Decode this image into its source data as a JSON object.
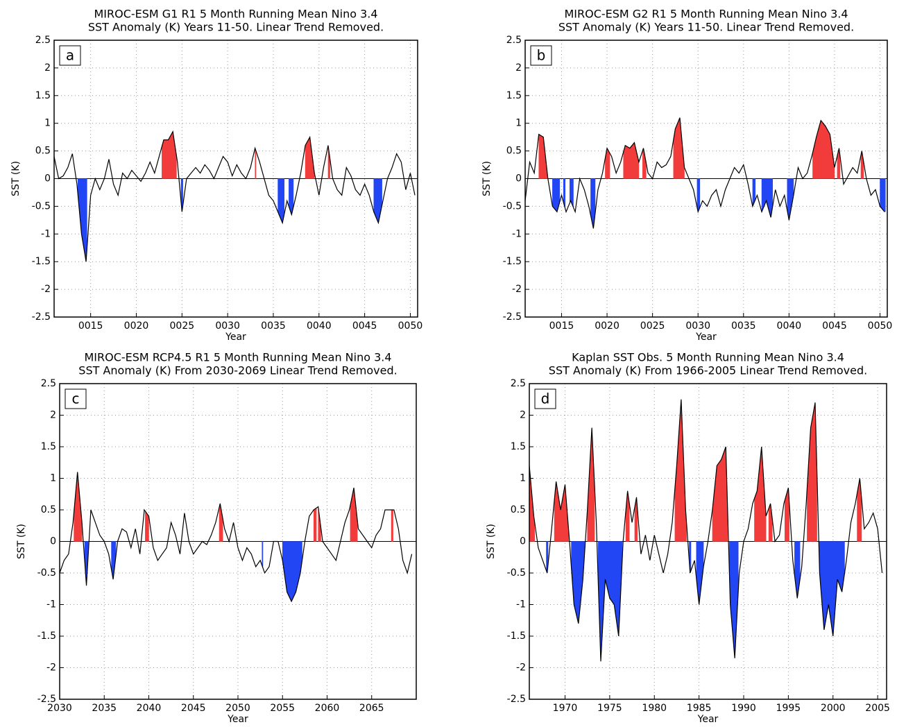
{
  "chart_data": [
    {
      "type": "line",
      "panel": "a",
      "title": "MIROC-ESM G1 R1 5 Month Running Mean Nino 3.4",
      "subtitle": "SST Anomaly (K) Years 11-50. Linear Trend Removed.",
      "xlabel": "Year",
      "ylabel": "SST (K)",
      "color": "#000000",
      "warm_color": "#f23c3c",
      "cold_color": "#2346f5",
      "grid": true,
      "xlim": [
        11,
        50.8
      ],
      "ylim": [
        -2.5,
        2.5
      ],
      "xticks": [
        {
          "value": 15,
          "label": "0015"
        },
        {
          "value": 20,
          "label": "0020"
        },
        {
          "value": 25,
          "label": "0025"
        },
        {
          "value": 30,
          "label": "0030"
        },
        {
          "value": 35,
          "label": "0035"
        },
        {
          "value": 40,
          "label": "0040"
        },
        {
          "value": 45,
          "label": "0045"
        },
        {
          "value": 50,
          "label": "0050"
        }
      ],
      "yticks": [
        -2.5,
        -2,
        -1.5,
        -1,
        -0.5,
        0,
        0.5,
        1,
        1.5,
        2,
        2.5
      ],
      "x": [
        11,
        11.5,
        12,
        12.5,
        13,
        13.5,
        14,
        14.5,
        15,
        15.5,
        16,
        16.5,
        17,
        17.5,
        18,
        18.5,
        19,
        19.5,
        20,
        20.5,
        21,
        21.5,
        22,
        22.5,
        23,
        23.5,
        24,
        24.5,
        25,
        25.5,
        26,
        26.5,
        27,
        27.5,
        28,
        28.5,
        29,
        29.5,
        30,
        30.5,
        31,
        31.5,
        32,
        32.5,
        33,
        33.5,
        34,
        34.5,
        35,
        35.5,
        36,
        36.5,
        37,
        37.5,
        38,
        38.5,
        39,
        39.5,
        40,
        40.5,
        41,
        41.5,
        42,
        42.5,
        43,
        43.5,
        44,
        44.5,
        45,
        45.5,
        46,
        46.5,
        47,
        47.5,
        48,
        48.5,
        49,
        49.5,
        50,
        50.5
      ],
      "values": [
        0.4,
        0.0,
        0.05,
        0.2,
        0.45,
        -0.1,
        -1.0,
        -1.5,
        -0.3,
        0.0,
        -0.2,
        0.0,
        0.35,
        -0.1,
        -0.3,
        0.1,
        0.0,
        0.15,
        0.05,
        -0.05,
        0.1,
        0.3,
        0.1,
        0.4,
        0.7,
        0.7,
        0.85,
        0.3,
        -0.6,
        0.0,
        0.1,
        0.2,
        0.1,
        0.25,
        0.15,
        0.0,
        0.2,
        0.4,
        0.3,
        0.05,
        0.25,
        0.1,
        0.0,
        0.2,
        0.55,
        0.3,
        0.0,
        -0.3,
        -0.4,
        -0.6,
        -0.8,
        -0.4,
        -0.65,
        -0.3,
        0.1,
        0.6,
        0.75,
        0.1,
        -0.3,
        0.2,
        0.6,
        0.0,
        -0.2,
        -0.3,
        0.2,
        0.05,
        -0.2,
        -0.3,
        -0.1,
        -0.3,
        -0.6,
        -0.8,
        -0.4,
        0.0,
        0.2,
        0.45,
        0.3,
        -0.2,
        0.1,
        -0.3
      ],
      "warm_events": [
        [
          22.8,
          24.4
        ],
        [
          33,
          33.1
        ],
        [
          38.5,
          39.5
        ],
        [
          41,
          41.2
        ]
      ],
      "cold_events": [
        [
          13.6,
          14.6
        ],
        [
          24.9,
          25.1
        ],
        [
          35.5,
          36.2
        ],
        [
          36.7,
          37.2
        ],
        [
          46,
          46.9
        ]
      ]
    },
    {
      "type": "line",
      "panel": "b",
      "title": "MIROC-ESM G2 R1 5 Month Running Mean Nino 3.4",
      "subtitle": "SST Anomaly (K) Years 11-50. Linear Trend Removed.",
      "xlabel": "Year",
      "ylabel": "SST (K)",
      "color": "#000000",
      "warm_color": "#f23c3c",
      "cold_color": "#2346f5",
      "grid": true,
      "xlim": [
        11,
        50.8
      ],
      "ylim": [
        -2.5,
        2.5
      ],
      "xticks": [
        {
          "value": 15,
          "label": "0015"
        },
        {
          "value": 20,
          "label": "0020"
        },
        {
          "value": 25,
          "label": "0025"
        },
        {
          "value": 30,
          "label": "0030"
        },
        {
          "value": 35,
          "label": "0035"
        },
        {
          "value": 40,
          "label": "0040"
        },
        {
          "value": 45,
          "label": "0045"
        },
        {
          "value": 50,
          "label": "0050"
        }
      ],
      "yticks": [
        -2.5,
        -2,
        -1.5,
        -1,
        -0.5,
        0,
        0.5,
        1,
        1.5,
        2,
        2.5
      ],
      "x": [
        11,
        11.5,
        12,
        12.5,
        13,
        13.5,
        14,
        14.5,
        15,
        15.5,
        16,
        16.5,
        17,
        17.5,
        18,
        18.5,
        19,
        19.5,
        20,
        20.5,
        21,
        21.5,
        22,
        22.5,
        23,
        23.5,
        24,
        24.5,
        25,
        25.5,
        26,
        26.5,
        27,
        27.5,
        28,
        28.5,
        29,
        29.5,
        30,
        30.5,
        31,
        31.5,
        32,
        32.5,
        33,
        33.5,
        34,
        34.5,
        35,
        35.5,
        36,
        36.5,
        37,
        37.5,
        38,
        38.5,
        39,
        39.5,
        40,
        40.5,
        41,
        41.5,
        42,
        42.5,
        43,
        43.5,
        44,
        44.5,
        45,
        45.5,
        46,
        46.5,
        47,
        47.5,
        48,
        48.5,
        49,
        49.5,
        50,
        50.5
      ],
      "values": [
        -0.4,
        0.3,
        0.1,
        0.8,
        0.75,
        0.0,
        -0.5,
        -0.6,
        -0.3,
        -0.6,
        -0.4,
        -0.6,
        0.0,
        -0.2,
        -0.5,
        -0.9,
        -0.2,
        0.1,
        0.55,
        0.4,
        0.1,
        0.3,
        0.6,
        0.55,
        0.65,
        0.3,
        0.55,
        0.1,
        0.0,
        0.3,
        0.2,
        0.25,
        0.4,
        0.9,
        1.1,
        0.2,
        0.0,
        -0.2,
        -0.6,
        -0.4,
        -0.5,
        -0.3,
        -0.2,
        -0.5,
        -0.2,
        0.0,
        0.2,
        0.1,
        0.25,
        -0.1,
        -0.5,
        -0.3,
        -0.6,
        -0.4,
        -0.7,
        -0.2,
        -0.5,
        -0.3,
        -0.75,
        -0.3,
        0.2,
        0.0,
        0.1,
        0.4,
        0.75,
        1.05,
        0.95,
        0.8,
        0.2,
        0.55,
        -0.1,
        0.05,
        0.2,
        0.1,
        0.5,
        0.0,
        -0.3,
        -0.2,
        -0.5,
        -0.6
      ],
      "warm_events": [
        [
          12.5,
          13.5
        ],
        [
          19.8,
          20.3
        ],
        [
          21.8,
          23.5
        ],
        [
          23.9,
          24.3
        ],
        [
          27.3,
          28.5
        ],
        [
          42.6,
          45
        ],
        [
          45.3,
          45.6
        ],
        [
          47.9,
          48.2
        ]
      ],
      "cold_events": [
        [
          14,
          14.8
        ],
        [
          15.2,
          15.4
        ],
        [
          15.9,
          16.3
        ],
        [
          18.2,
          18.7
        ],
        [
          29.9,
          30.2
        ],
        [
          36,
          36.3
        ],
        [
          37,
          38.2
        ],
        [
          39.8,
          40.5
        ],
        [
          50,
          50.6
        ]
      ]
    },
    {
      "type": "line",
      "panel": "c",
      "title": "MIROC-ESM RCP4.5 R1 5 Month Running Mean Nino 3.4",
      "subtitle": "SST Anomaly (K) From 2030-2069 Linear Trend Removed.",
      "xlabel": "Year",
      "ylabel": "SST (K)",
      "color": "#000000",
      "warm_color": "#f23c3c",
      "cold_color": "#2346f5",
      "grid": true,
      "xlim": [
        2030,
        2070
      ],
      "ylim": [
        -2.5,
        2.5
      ],
      "xticks": [
        2030,
        2035,
        2040,
        2045,
        2050,
        2055,
        2060,
        2065
      ],
      "yticks": [
        -2.5,
        -2,
        -1.5,
        -1,
        -0.5,
        0,
        0.5,
        1,
        1.5,
        2,
        2.5
      ],
      "x": [
        2030,
        2030.5,
        2031,
        2031.5,
        2032,
        2032.5,
        2033,
        2033.5,
        2034,
        2034.5,
        2035,
        2035.5,
        2036,
        2036.5,
        2037,
        2037.5,
        2038,
        2038.5,
        2039,
        2039.5,
        2040,
        2040.5,
        2041,
        2041.5,
        2042,
        2042.5,
        2043,
        2043.5,
        2044,
        2044.5,
        2045,
        2045.5,
        2046,
        2046.5,
        2047,
        2047.5,
        2048,
        2048.5,
        2049,
        2049.5,
        2050,
        2050.5,
        2051,
        2051.5,
        2052,
        2052.5,
        2053,
        2053.5,
        2054,
        2054.5,
        2055,
        2055.5,
        2056,
        2056.5,
        2057,
        2057.5,
        2058,
        2058.5,
        2059,
        2059.5,
        2060,
        2060.5,
        2061,
        2061.5,
        2062,
        2062.5,
        2063,
        2063.5,
        2064,
        2064.5,
        2065,
        2065.5,
        2066,
        2066.5,
        2067,
        2067.5,
        2068,
        2068.5,
        2069,
        2069.5
      ],
      "values": [
        -0.5,
        -0.3,
        -0.2,
        0.3,
        1.1,
        0.3,
        -0.7,
        0.5,
        0.3,
        0.1,
        0.0,
        -0.2,
        -0.6,
        0.0,
        0.2,
        0.15,
        -0.1,
        0.2,
        -0.2,
        0.5,
        0.4,
        -0.1,
        -0.3,
        -0.2,
        -0.1,
        0.3,
        0.1,
        -0.2,
        0.45,
        0.0,
        -0.2,
        -0.1,
        0.0,
        -0.05,
        0.1,
        0.3,
        0.6,
        0.2,
        0.0,
        0.3,
        -0.1,
        -0.3,
        -0.1,
        -0.2,
        -0.4,
        -0.3,
        -0.5,
        -0.4,
        0.0,
        0.0,
        -0.3,
        -0.8,
        -0.95,
        -0.8,
        -0.5,
        0.0,
        0.4,
        0.5,
        0.55,
        0.0,
        -0.1,
        -0.2,
        -0.3,
        0.0,
        0.3,
        0.5,
        0.85,
        0.2,
        0.1,
        0.0,
        -0.1,
        0.1,
        0.2,
        0.5,
        0.5,
        0.5,
        0.2,
        -0.3,
        -0.5,
        -0.2
      ],
      "warm_events": [
        [
          2031.6,
          2032.5
        ],
        [
          2039.6,
          2040
        ],
        [
          2047.9,
          2048.3
        ],
        [
          2058.5,
          2058.8
        ],
        [
          2059,
          2059.3
        ],
        [
          2062.6,
          2063.4
        ],
        [
          2067.2,
          2067.4
        ]
      ],
      "cold_events": [
        [
          2032.8,
          2033.2
        ],
        [
          2035.8,
          2036.3
        ],
        [
          2052.7,
          2052.8
        ],
        [
          2055,
          2057.2
        ]
      ]
    },
    {
      "type": "line",
      "panel": "d",
      "title": "Kaplan SST Obs. 5 Month Running Mean Nino 3.4",
      "subtitle": "SST Anomaly (K) From 1966-2005 Linear Trend Removed.",
      "xlabel": "Year",
      "ylabel": "SST (K)",
      "color": "#000000",
      "warm_color": "#f23c3c",
      "cold_color": "#2346f5",
      "grid": true,
      "xlim": [
        1966,
        2006
      ],
      "ylim": [
        -2.5,
        2.5
      ],
      "xticks": [
        1970,
        1975,
        1980,
        1985,
        1990,
        1995,
        2000,
        2005
      ],
      "yticks": [
        -2.5,
        -2,
        -1.5,
        -1,
        -0.5,
        0,
        0.5,
        1,
        1.5,
        2,
        2.5
      ],
      "x": [
        1966,
        1966.5,
        1967,
        1967.5,
        1968,
        1968.5,
        1969,
        1969.5,
        1970,
        1970.5,
        1971,
        1971.5,
        1972,
        1972.5,
        1973,
        1973.5,
        1974,
        1974.5,
        1975,
        1975.5,
        1976,
        1976.5,
        1977,
        1977.5,
        1978,
        1978.5,
        1979,
        1979.5,
        1980,
        1980.5,
        1981,
        1981.5,
        1982,
        1982.5,
        1983,
        1983.5,
        1984,
        1984.5,
        1985,
        1985.5,
        1986,
        1986.5,
        1987,
        1987.5,
        1988,
        1988.5,
        1989,
        1989.5,
        1990,
        1990.5,
        1991,
        1991.5,
        1992,
        1992.5,
        1993,
        1993.5,
        1994,
        1994.5,
        1995,
        1995.5,
        1996,
        1996.5,
        1997,
        1997.5,
        1998,
        1998.5,
        1999,
        1999.5,
        2000,
        2000.5,
        2001,
        2001.5,
        2002,
        2002.5,
        2003,
        2003.5,
        2004,
        2004.5,
        2005,
        2005.5
      ],
      "values": [
        1.2,
        0.4,
        -0.1,
        -0.3,
        -0.5,
        0.2,
        0.95,
        0.5,
        0.9,
        0.0,
        -1.0,
        -1.3,
        -0.6,
        0.5,
        1.8,
        0.3,
        -1.9,
        -0.6,
        -0.9,
        -1.0,
        -1.5,
        0.0,
        0.8,
        0.3,
        0.7,
        -0.2,
        0.1,
        -0.3,
        0.1,
        -0.2,
        -0.5,
        -0.2,
        0.3,
        1.2,
        2.25,
        0.5,
        -0.5,
        -0.3,
        -1.0,
        -0.4,
        0.0,
        0.5,
        1.2,
        1.3,
        1.5,
        -1.0,
        -1.85,
        -0.5,
        0.0,
        0.2,
        0.6,
        0.8,
        1.5,
        0.4,
        0.6,
        0.0,
        0.1,
        0.6,
        0.85,
        -0.3,
        -0.9,
        -0.4,
        0.6,
        1.8,
        2.2,
        -0.5,
        -1.4,
        -1.0,
        -1.5,
        -0.6,
        -0.8,
        -0.3,
        0.3,
        0.6,
        1.0,
        0.2,
        0.3,
        0.45,
        0.2,
        -0.5
      ],
      "warm_events": [
        [
          1966,
          1966.6
        ],
        [
          1968.8,
          1970.4
        ],
        [
          1972.5,
          1973.3
        ],
        [
          1976.8,
          1977.2
        ],
        [
          1977.8,
          1978.1
        ],
        [
          1982.3,
          1983.6
        ],
        [
          1986.5,
          1988.2
        ],
        [
          1991.2,
          1992.5
        ],
        [
          1992.8,
          1993.2
        ],
        [
          1994.6,
          1995.1
        ],
        [
          1997.1,
          1998.2
        ],
        [
          2002.7,
          2003.2
        ]
      ],
      "cold_events": [
        [
          1967.9,
          1968.1
        ],
        [
          1970.7,
          1972.2
        ],
        [
          1973.7,
          1976.4
        ],
        [
          1983.9,
          1984.1
        ],
        [
          1984.7,
          1985.5
        ],
        [
          1988.4,
          1989.4
        ],
        [
          1995.7,
          1996.3
        ],
        [
          1998.4,
          2001.3
        ]
      ]
    }
  ]
}
